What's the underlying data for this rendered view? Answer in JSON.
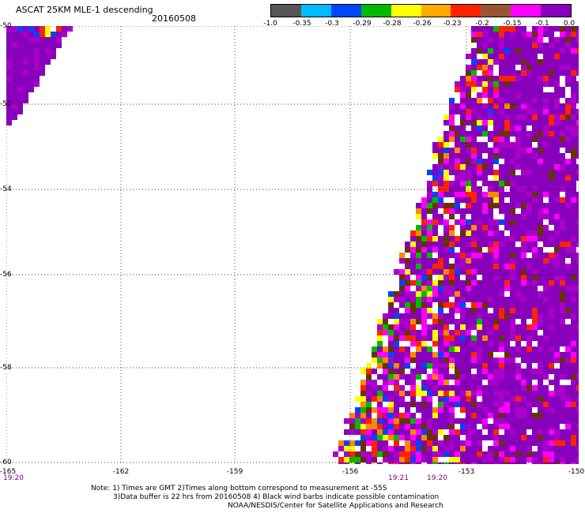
{
  "header": {
    "title": "ASCAT 25KM MLE-1 descending",
    "date": "20160508"
  },
  "colorbar": {
    "colors": [
      "#555555",
      "#00bbff",
      "#0044ff",
      "#00bb00",
      "#ffff00",
      "#ffaa00",
      "#ff2200",
      "#995533",
      "#ff00ff",
      "#8800bb"
    ],
    "labels": [
      "-1.0",
      "-0.35",
      "-0.3",
      "-0.29",
      "-0.28",
      "-0.26",
      "-0.23",
      "-0.2",
      "-0.15",
      "-0.1",
      "0.0"
    ]
  },
  "map": {
    "lat_labels": [
      "-50",
      "-52",
      "-54",
      "-56",
      "-58",
      "-60"
    ],
    "lon_labels": [
      "-165",
      "-162",
      "-159",
      "-156",
      "-153",
      "-150"
    ],
    "time_labels": [
      "19:20",
      "19:21",
      "19:20"
    ],
    "background_color": "#ffffff",
    "swath_palette": [
      "#8800bb",
      "#8800bb",
      "#8800bb",
      "#8800bb",
      "#aa00cc",
      "#ff00ff",
      "#663300",
      "#ff2200",
      "#ff8800",
      "#ffff00",
      "#00bb00",
      "#0044ff",
      "#ffffff"
    ]
  },
  "notes": {
    "line1": "Note: 1) Times are GMT 2)Times along bottom correspond to measurement at -55S",
    "line2": "3)Data buffer is 22 hrs from 20160508 4) Black wind barbs indicate possible contamination",
    "line3": "NOAA/NESDIS/Center for Satellite Applications and Research"
  }
}
